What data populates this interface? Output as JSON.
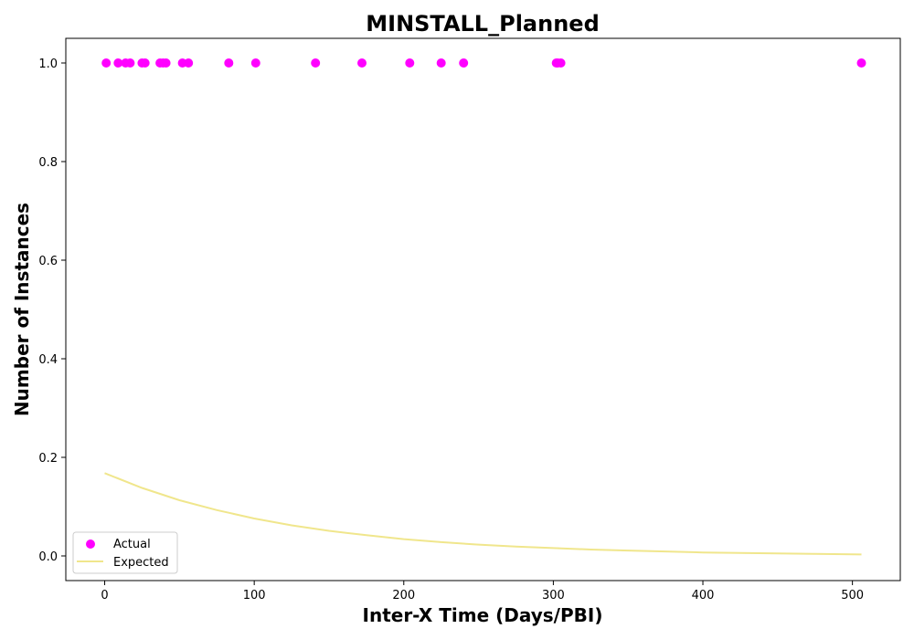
{
  "chart_data": {
    "type": "scatter",
    "title": "MINSTALL_Planned",
    "xlabel": "Inter-X Time (Days/PBI)",
    "ylabel": "Number of Instances",
    "xlim": [
      -26,
      532
    ],
    "ylim": [
      -0.05,
      1.05
    ],
    "xticks": [
      0,
      100,
      200,
      300,
      400,
      500
    ],
    "yticks": [
      0.0,
      0.2,
      0.4,
      0.6,
      0.8,
      1.0
    ],
    "xtick_labels": [
      "0",
      "100",
      "200",
      "300",
      "400",
      "500"
    ],
    "ytick_labels": [
      "0.0",
      "0.2",
      "0.4",
      "0.6",
      "0.8",
      "1.0"
    ],
    "grid": false,
    "legend_position": "lower-left",
    "series": [
      {
        "name": "Actual",
        "kind": "scatter",
        "color": "#ff00ff",
        "x": [
          1,
          9,
          14,
          17,
          25,
          27,
          37,
          39,
          41,
          52,
          56,
          83,
          101,
          141,
          172,
          204,
          225,
          240,
          302,
          303,
          305,
          506
        ],
        "y": [
          1,
          1,
          1,
          1,
          1,
          1,
          1,
          1,
          1,
          1,
          1,
          1,
          1,
          1,
          1,
          1,
          1,
          1,
          1,
          1,
          1,
          1
        ]
      },
      {
        "name": "Expected",
        "kind": "line",
        "color": "#f0e68c",
        "x": [
          0,
          25,
          50,
          75,
          100,
          125,
          150,
          175,
          200,
          225,
          250,
          275,
          300,
          325,
          350,
          375,
          400,
          425,
          450,
          475,
          506
        ],
        "y": [
          0.168,
          0.138,
          0.113,
          0.093,
          0.076,
          0.062,
          0.051,
          0.042,
          0.034,
          0.028,
          0.023,
          0.019,
          0.016,
          0.013,
          0.011,
          0.009,
          0.007,
          0.006,
          0.005,
          0.004,
          0.003
        ]
      }
    ]
  }
}
